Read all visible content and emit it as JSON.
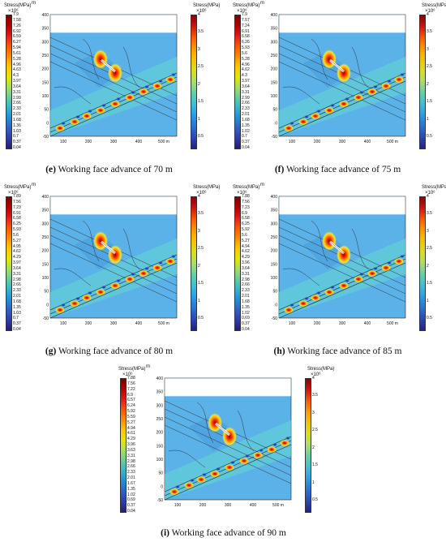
{
  "common": {
    "stress_title": "Stress(MPa)",
    "multiplier": "×10⁶",
    "unit_m": "m",
    "right_ticks": [
      "4",
      "3.5",
      "3",
      "2.5",
      "2",
      "1.5",
      "1",
      "0.5"
    ],
    "y_ticks": [
      "400",
      "350",
      "300",
      "250",
      "200",
      "150",
      "100",
      "50",
      "0",
      "-50"
    ],
    "x_ticks": [
      "100",
      "200",
      "300",
      "400",
      "500 m"
    ]
  },
  "panels": [
    {
      "letter": "(e)",
      "caption": "Working face advance of 70 m",
      "left_ticks": [
        "7.9",
        "7.58",
        "7.26",
        "6.92",
        "6.59",
        "6.27",
        "5.94",
        "5.61",
        "5.28",
        "4.96",
        "4.63",
        "4.3",
        "3.97",
        "3.64",
        "3.31",
        "2.99",
        "2.66",
        "2.33",
        "2.01",
        "1.68",
        "1.36",
        "1.03",
        "0.7",
        "0.37",
        "0.04"
      ]
    },
    {
      "letter": "(f)",
      "caption": "Working face advance of 75 m",
      "left_ticks": [
        "7.9",
        "7.57",
        "7.24",
        "6.91",
        "6.58",
        "6.26",
        "5.93",
        "5.6",
        "5.28",
        "4.96",
        "4.62",
        "4.3",
        "3.97",
        "3.64",
        "3.31",
        "2.99",
        "2.66",
        "2.33",
        "2.01",
        "1.68",
        "1.35",
        "1.02",
        "0.7",
        "0.37",
        "0.04"
      ]
    },
    {
      "letter": "(g)",
      "caption": "Working face advance of 80 m",
      "left_ticks": [
        "7.89",
        "7.56",
        "7.23",
        "6.91",
        "6.58",
        "6.25",
        "5.93",
        "5.6",
        "5.27",
        "4.95",
        "4.62",
        "4.29",
        "3.97",
        "3.64",
        "3.31",
        "2.98",
        "2.66",
        "2.33",
        "2.01",
        "1.68",
        "1.35",
        "1.03",
        "0.7",
        "0.37",
        "0.04"
      ]
    },
    {
      "letter": "(h)",
      "caption": "Working face advance of 85 m",
      "left_ticks": [
        "7.88",
        "7.56",
        "7.23",
        "6.9",
        "6.58",
        "6.25",
        "5.92",
        "5.6",
        "5.27",
        "4.94",
        "4.62",
        "4.29",
        "3.96",
        "3.64",
        "3.31",
        "2.98",
        "2.66",
        "2.33",
        "2.01",
        "1.68",
        "1.35",
        "1.02",
        "0.69",
        "0.37",
        "0.04"
      ]
    },
    {
      "letter": "(i)",
      "caption": "Working face advance of 90 m",
      "left_ticks": [
        "7.88",
        "7.56",
        "7.22",
        "6.9",
        "6.57",
        "6.24",
        "5.92",
        "5.59",
        "5.27",
        "4.94",
        "4.61",
        "4.29",
        "3.96",
        "3.63",
        "3.31",
        "2.98",
        "2.66",
        "2.33",
        "2.01",
        "1.67",
        "1.35",
        "1.02",
        "0.69",
        "0.37",
        "0.04"
      ]
    }
  ]
}
